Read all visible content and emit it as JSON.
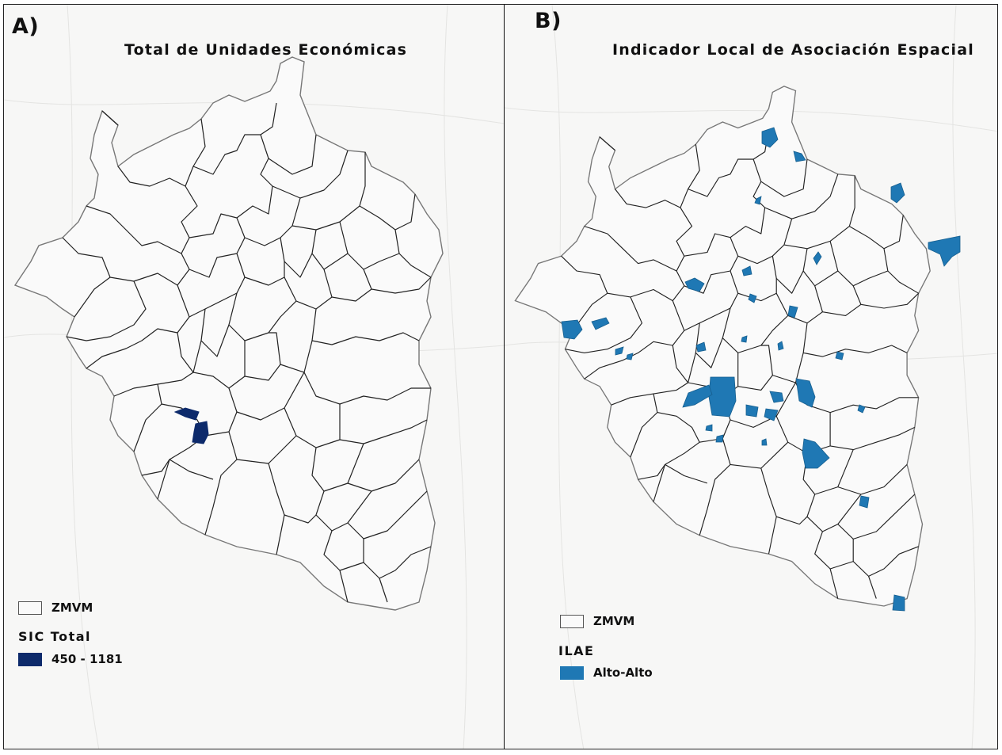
{
  "panels": [
    {
      "letter": "A)",
      "title": "Total de Unidades Económicas",
      "legend": {
        "boundary_label": "ZMVM",
        "class_title": "SIC Total",
        "class_label": "450 - 1181",
        "class_color": "#0d2a6b"
      }
    },
    {
      "letter": "B)",
      "title": "Indicador Local de Asociación Espacial",
      "legend": {
        "boundary_label": "ZMVM",
        "class_title": "ILAE",
        "class_label": "Alto-Alto",
        "class_color": "#1f78b4"
      }
    }
  ],
  "colors": {
    "outer_boundary": "#777777",
    "municipal_lines": "#222222",
    "basemap": "#f7f7f6"
  }
}
